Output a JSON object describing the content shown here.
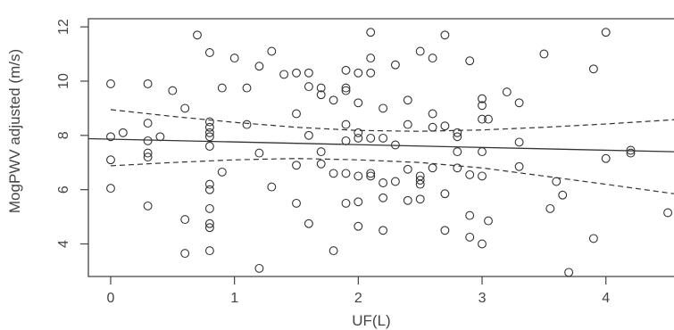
{
  "chart_data": {
    "type": "scatter",
    "title": "",
    "xlabel": "UF(L)",
    "ylabel": "MogPWV adjusted (m/s)",
    "xlim": [
      -0.18,
      4.55
    ],
    "ylim": [
      2.8,
      12.3
    ],
    "xticks": [
      0,
      1,
      2,
      3,
      4
    ],
    "yticks": [
      4,
      6,
      8,
      10,
      12
    ],
    "grid": false,
    "legend": "none",
    "colors": {
      "points": "#333333",
      "lines": "#333333",
      "axes": "#444444",
      "text": "#444444"
    },
    "points": [
      [
        0.0,
        9.9
      ],
      [
        0.0,
        7.95
      ],
      [
        0.0,
        7.1
      ],
      [
        0.0,
        6.05
      ],
      [
        0.1,
        8.1
      ],
      [
        0.3,
        9.9
      ],
      [
        0.3,
        8.45
      ],
      [
        0.3,
        7.8
      ],
      [
        0.3,
        7.35
      ],
      [
        0.3,
        7.2
      ],
      [
        0.3,
        5.4
      ],
      [
        0.4,
        7.95
      ],
      [
        0.5,
        9.65
      ],
      [
        0.6,
        9.0
      ],
      [
        0.6,
        4.9
      ],
      [
        0.6,
        3.65
      ],
      [
        0.7,
        11.7
      ],
      [
        0.8,
        11.05
      ],
      [
        0.8,
        8.5
      ],
      [
        0.8,
        8.3
      ],
      [
        0.8,
        8.1
      ],
      [
        0.8,
        7.95
      ],
      [
        0.8,
        7.6
      ],
      [
        0.8,
        6.2
      ],
      [
        0.8,
        6.0
      ],
      [
        0.8,
        5.3
      ],
      [
        0.8,
        4.75
      ],
      [
        0.8,
        4.6
      ],
      [
        0.8,
        3.75
      ],
      [
        0.9,
        9.75
      ],
      [
        0.9,
        6.65
      ],
      [
        1.0,
        10.85
      ],
      [
        1.1,
        9.75
      ],
      [
        1.1,
        8.4
      ],
      [
        1.2,
        10.55
      ],
      [
        1.2,
        7.35
      ],
      [
        1.2,
        3.1
      ],
      [
        1.3,
        11.1
      ],
      [
        1.3,
        6.1
      ],
      [
        1.4,
        10.25
      ],
      [
        1.5,
        10.3
      ],
      [
        1.5,
        8.8
      ],
      [
        1.5,
        6.9
      ],
      [
        1.5,
        5.5
      ],
      [
        1.6,
        10.3
      ],
      [
        1.6,
        9.8
      ],
      [
        1.6,
        8.0
      ],
      [
        1.6,
        4.75
      ],
      [
        1.7,
        9.75
      ],
      [
        1.7,
        9.5
      ],
      [
        1.7,
        7.4
      ],
      [
        1.7,
        6.95
      ],
      [
        1.8,
        9.3
      ],
      [
        1.8,
        6.6
      ],
      [
        1.8,
        3.75
      ],
      [
        1.9,
        10.4
      ],
      [
        1.9,
        9.75
      ],
      [
        1.9,
        9.65
      ],
      [
        1.9,
        8.4
      ],
      [
        1.9,
        7.8
      ],
      [
        1.9,
        6.6
      ],
      [
        1.9,
        5.5
      ],
      [
        2.0,
        10.3
      ],
      [
        2.0,
        9.2
      ],
      [
        2.0,
        8.1
      ],
      [
        2.0,
        7.9
      ],
      [
        2.0,
        6.5
      ],
      [
        2.0,
        5.55
      ],
      [
        2.0,
        4.65
      ],
      [
        2.1,
        11.8
      ],
      [
        2.1,
        10.85
      ],
      [
        2.1,
        10.3
      ],
      [
        2.1,
        7.9
      ],
      [
        2.1,
        6.6
      ],
      [
        2.1,
        6.5
      ],
      [
        2.2,
        9.0
      ],
      [
        2.2,
        7.9
      ],
      [
        2.2,
        6.25
      ],
      [
        2.2,
        5.7
      ],
      [
        2.2,
        4.5
      ],
      [
        2.3,
        10.6
      ],
      [
        2.3,
        7.65
      ],
      [
        2.3,
        6.3
      ],
      [
        2.4,
        9.3
      ],
      [
        2.4,
        8.4
      ],
      [
        2.4,
        6.75
      ],
      [
        2.4,
        5.6
      ],
      [
        2.5,
        11.1
      ],
      [
        2.5,
        6.5
      ],
      [
        2.5,
        6.35
      ],
      [
        2.5,
        6.2
      ],
      [
        2.5,
        5.65
      ],
      [
        2.6,
        10.85
      ],
      [
        2.6,
        8.8
      ],
      [
        2.6,
        8.3
      ],
      [
        2.6,
        6.8
      ],
      [
        2.7,
        11.7
      ],
      [
        2.7,
        8.35
      ],
      [
        2.7,
        5.85
      ],
      [
        2.7,
        4.5
      ],
      [
        2.8,
        8.1
      ],
      [
        2.8,
        7.95
      ],
      [
        2.8,
        7.4
      ],
      [
        2.8,
        6.8
      ],
      [
        2.9,
        10.75
      ],
      [
        2.9,
        6.55
      ],
      [
        2.9,
        5.05
      ],
      [
        2.9,
        4.25
      ],
      [
        3.0,
        9.35
      ],
      [
        3.0,
        9.1
      ],
      [
        3.0,
        8.6
      ],
      [
        3.0,
        7.4
      ],
      [
        3.0,
        6.5
      ],
      [
        3.0,
        4.0
      ],
      [
        3.05,
        8.6
      ],
      [
        3.05,
        4.85
      ],
      [
        3.2,
        9.6
      ],
      [
        3.3,
        9.2
      ],
      [
        3.3,
        7.75
      ],
      [
        3.3,
        6.85
      ],
      [
        3.5,
        11.0
      ],
      [
        3.55,
        5.3
      ],
      [
        3.6,
        6.3
      ],
      [
        3.65,
        5.8
      ],
      [
        3.7,
        2.95
      ],
      [
        3.9,
        10.45
      ],
      [
        3.9,
        4.2
      ],
      [
        4.0,
        11.8
      ],
      [
        4.0,
        7.15
      ],
      [
        4.2,
        7.45
      ],
      [
        4.2,
        7.35
      ],
      [
        4.5,
        5.15
      ]
    ],
    "fit": {
      "x": [
        -0.18,
        4.55
      ],
      "y": [
        7.88,
        7.4
      ]
    },
    "ci_upper": {
      "x": [
        0.0,
        0.5,
        1.0,
        1.5,
        2.0,
        2.5,
        3.0,
        3.5,
        4.0,
        4.55
      ],
      "y": [
        8.95,
        8.7,
        8.48,
        8.3,
        8.18,
        8.15,
        8.2,
        8.3,
        8.42,
        8.58
      ]
    },
    "ci_lower": {
      "x": [
        0.0,
        0.5,
        1.0,
        1.5,
        2.0,
        2.5,
        3.0,
        3.5,
        4.0,
        4.55
      ],
      "y": [
        6.88,
        7.0,
        7.1,
        7.15,
        7.1,
        7.0,
        6.8,
        6.5,
        6.2,
        5.85
      ]
    }
  }
}
